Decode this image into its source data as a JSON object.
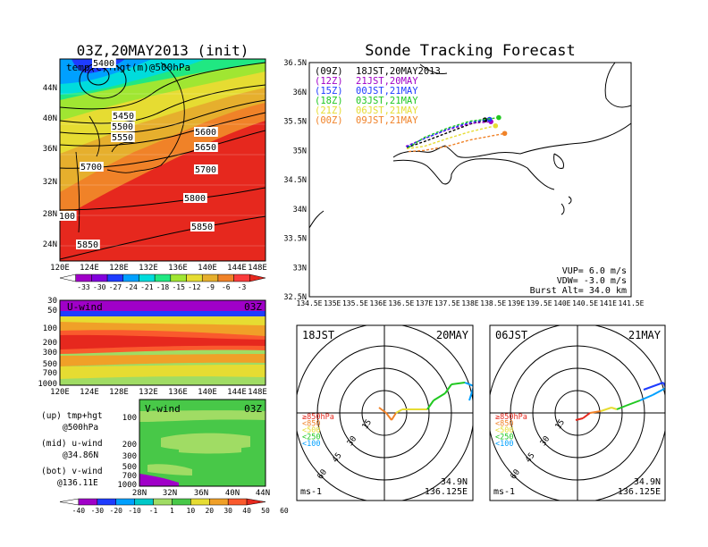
{
  "colors": {
    "temp": [
      "#ffffff",
      "#a000c8",
      "#8200dc",
      "#1e3cff",
      "#00a0ff",
      "#00dcdc",
      "#20e882",
      "#a0e632",
      "#e6dc32",
      "#e6af2d",
      "#f08228",
      "#fa3c3c",
      "#e6281e"
    ],
    "wind": [
      "#ffffff",
      "#a000c8",
      "#1e3cff",
      "#00a0ff",
      "#00c8c8",
      "#a0dc64",
      "#48c848",
      "#e6dc32",
      "#f0a028",
      "#fa5a2d",
      "#e6281e"
    ],
    "track": {
      "09Z": "#000000",
      "12Z": "#a000c8",
      "15Z": "#1e3cff",
      "18Z": "#20c820",
      "21Z": "#e6dc32",
      "00Z": "#f08228"
    },
    "hodo_legend": [
      "#e6281e",
      "#f08228",
      "#e6dc32",
      "#20c820",
      "#00a0ff",
      "#1e3cff"
    ]
  },
  "map": {
    "title": "03Z,20MAY2013 (init)",
    "field_label": "temp(C)+hgt(m)@500hPa",
    "lon_labels": [
      "120E",
      "124E",
      "128E",
      "132E",
      "136E",
      "140E",
      "144E",
      "148E"
    ],
    "lat_labels": [
      "44N",
      "40N",
      "36N",
      "32N",
      "28N",
      "24N"
    ],
    "contour_labels": [
      "5400",
      "5450",
      "5500",
      "5550",
      "5600",
      "5650",
      "5700",
      "5700",
      "5800",
      "5850",
      "5850",
      "100"
    ],
    "colorbar_labels": [
      "-33",
      "-30",
      "-27",
      "-24",
      "-21",
      "-18",
      "-15",
      "-12",
      "-9",
      "-6",
      "-3"
    ]
  },
  "uwind": {
    "label": "U-wind",
    "time": "03Z",
    "p_labels": [
      "30",
      "50",
      "100",
      "200",
      "300",
      "500",
      "700",
      "1000"
    ],
    "lon_labels": [
      "120E",
      "124E",
      "128E",
      "132E",
      "136E",
      "140E",
      "144E",
      "148E"
    ]
  },
  "vwind": {
    "label": "V-wind",
    "time": "03Z",
    "p_labels": [
      "100",
      "200",
      "300",
      "500",
      "700",
      "1000"
    ],
    "lat_labels": [
      "28N",
      "32N",
      "36N",
      "40N",
      "44N"
    ],
    "colorbar_labels": [
      "-40",
      "-30",
      "-20",
      "-10",
      "-1",
      "1",
      "10",
      "20",
      "30",
      "40",
      "50",
      "60"
    ]
  },
  "notes": [
    {
      "top": "(up) tmp+hgt",
      "bottom": "@500hPa"
    },
    {
      "top": "(mid) u-wind",
      "bottom": "@34.86N"
    },
    {
      "top": "(bot) v-wind",
      "bottom": "@136.11E"
    }
  ],
  "track": {
    "title": "Sonde Tracking Forecast",
    "lat_labels": [
      "36.5N",
      "36N",
      "35.5N",
      "35N",
      "34.5N",
      "34N",
      "33.5N",
      "33N",
      "32.5N"
    ],
    "lon_labels": [
      "134.5E",
      "135E",
      "135.5E",
      "136E",
      "136.5E",
      "137E",
      "137.5E",
      "138E",
      "138.5E",
      "139E",
      "139.5E",
      "140E",
      "140.5E",
      "141E",
      "141.5E"
    ],
    "legend": [
      {
        "z": "(09Z)",
        "text": "18JST,20MAY2013",
        "color": "#000000"
      },
      {
        "z": "(12Z)",
        "text": "21JST,20MAY",
        "color": "#a000c8"
      },
      {
        "z": "(15Z)",
        "text": "00JST,21MAY",
        "color": "#1e3cff"
      },
      {
        "z": "(18Z)",
        "text": "03JST,21MAY",
        "color": "#20c820"
      },
      {
        "z": "(21Z)",
        "text": "06JST,21MAY",
        "color": "#e6dc32"
      },
      {
        "z": "(00Z)",
        "text": "09JST,21MAY",
        "color": "#f08228"
      }
    ],
    "vup": "VUP= 6.0 m/s",
    "vdw": "VDW= -3.0 m/s",
    "burst": "Burst Alt= 34.0 km"
  },
  "hodo_left": {
    "time": "18JST",
    "date": "20MAY",
    "lat": "34.9N",
    "lon": "136.125E",
    "units": "ms-1"
  },
  "hodo_right": {
    "time": "06JST",
    "date": "21MAY",
    "lat": "34.9N",
    "lon": "136.125E",
    "units": "ms-1"
  },
  "hodo_legend": [
    "≥850hPa",
    "<850",
    "<500",
    "<250",
    "<100"
  ],
  "ring_labels": [
    "15",
    "30",
    "45",
    "60"
  ],
  "chart_data": [
    {
      "type": "heatmap",
      "title": "03Z,20MAY2013 (init)",
      "field": "temp(C)+hgt(m)@500hPa",
      "x_range": [
        "120E",
        "148E"
      ],
      "y_range": [
        "23N",
        "47N"
      ],
      "color_levels": [
        -33,
        -30,
        -27,
        -24,
        -21,
        -18,
        -15,
        -12,
        -9,
        -6,
        -3
      ],
      "contours_m": [
        5400,
        5450,
        5500,
        5550,
        5600,
        5650,
        5700,
        5800,
        5850
      ]
    },
    {
      "type": "heatmap",
      "title": "U-wind 03Z",
      "x_range": [
        "120E",
        "148E"
      ],
      "y_range_hPa": [
        1000,
        30
      ]
    },
    {
      "type": "heatmap",
      "title": "V-wind 03Z",
      "x_range": [
        "28N",
        "44N"
      ],
      "y_range_hPa": [
        1000,
        100
      ],
      "color_levels": [
        -40,
        -30,
        -20,
        -10,
        -1,
        1,
        10,
        20,
        30,
        40,
        50,
        60
      ]
    },
    {
      "type": "line",
      "title": "Sonde Tracking Forecast",
      "xlim": [
        134.5,
        141.5
      ],
      "ylim": [
        32.5,
        36.5
      ],
      "series": [
        {
          "name": "(09Z) 18JST,20MAY2013",
          "points": [
            [
              136.62,
              35.05
            ],
            [
              137.0,
              35.15
            ],
            [
              137.5,
              35.3
            ],
            [
              138.0,
              35.45
            ],
            [
              138.32,
              35.52
            ]
          ]
        },
        {
          "name": "(12Z) 21JST,20MAY",
          "points": [
            [
              136.6,
              35.07
            ],
            [
              137.0,
              35.2
            ],
            [
              137.5,
              35.35
            ],
            [
              138.0,
              35.46
            ],
            [
              138.45,
              35.49
            ]
          ]
        },
        {
          "name": "(15Z) 00JST,21MAY",
          "points": [
            [
              136.62,
              35.06
            ],
            [
              137.0,
              35.2
            ],
            [
              137.5,
              35.36
            ],
            [
              138.0,
              35.48
            ],
            [
              138.42,
              35.53
            ]
          ]
        },
        {
          "name": "(18Z) 03JST,21MAY",
          "points": [
            [
              136.66,
              35.05
            ],
            [
              137.0,
              35.22
            ],
            [
              137.5,
              35.38
            ],
            [
              138.0,
              35.5
            ],
            [
              138.62,
              35.56
            ]
          ]
        },
        {
          "name": "(21Z) 06JST,21MAY",
          "points": [
            [
              136.62,
              35.03
            ],
            [
              137.0,
              35.07
            ],
            [
              137.5,
              35.2
            ],
            [
              138.0,
              35.32
            ],
            [
              138.55,
              35.42
            ]
          ]
        },
        {
          "name": "(00Z) 09JST,21MAY",
          "points": [
            [
              136.66,
              34.98
            ],
            [
              137.0,
              35.0
            ],
            [
              137.5,
              35.07
            ],
            [
              138.0,
              35.18
            ],
            [
              138.75,
              35.29
            ]
          ]
        }
      ]
    },
    {
      "type": "line",
      "title": "18JST 20MAY",
      "units": "ms-1",
      "rings": [
        15,
        30,
        45,
        60
      ]
    },
    {
      "type": "line",
      "title": "06JST 21MAY",
      "units": "ms-1",
      "rings": [
        15,
        30,
        45,
        60
      ]
    }
  ]
}
